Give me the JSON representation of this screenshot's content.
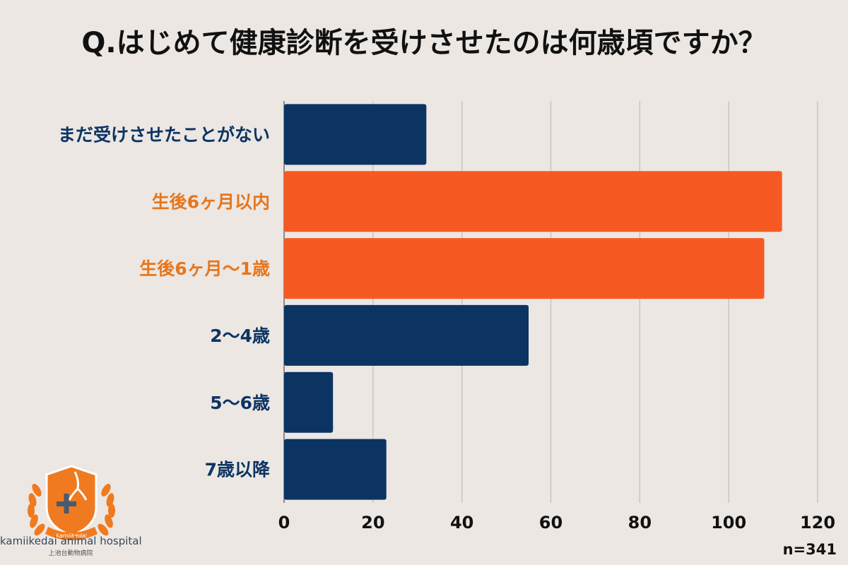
{
  "title": "Q.はじめて健康診断を受けさせたのは何歳頃ですか？",
  "sample_size": "n=341",
  "logo": {
    "name": "kamiikedai animal hospital",
    "subname": "上池台動物病院",
    "ribbon": "kamiikedai"
  },
  "colors": {
    "navy": "#0b3463",
    "orange": "#f65a22",
    "orange_label": "#e6761c",
    "grid": "#c9c5c2",
    "background": "#ece7e3"
  },
  "chart_data": {
    "type": "bar",
    "orientation": "horizontal",
    "categories": [
      "まだ受けさせたことがない",
      "生後6ヶ月以内",
      "生後6ヶ月〜1歳",
      "2〜4歳",
      "5〜6歳",
      "7歳以降"
    ],
    "values": [
      32,
      112,
      108,
      55,
      11,
      23
    ],
    "highlight": [
      false,
      true,
      true,
      false,
      false,
      false
    ],
    "xlim": [
      0,
      120
    ],
    "xticks": [
      "0",
      "20",
      "40",
      "60",
      "80",
      "100",
      "120"
    ],
    "grid": true,
    "xlabel": "",
    "ylabel": ""
  }
}
